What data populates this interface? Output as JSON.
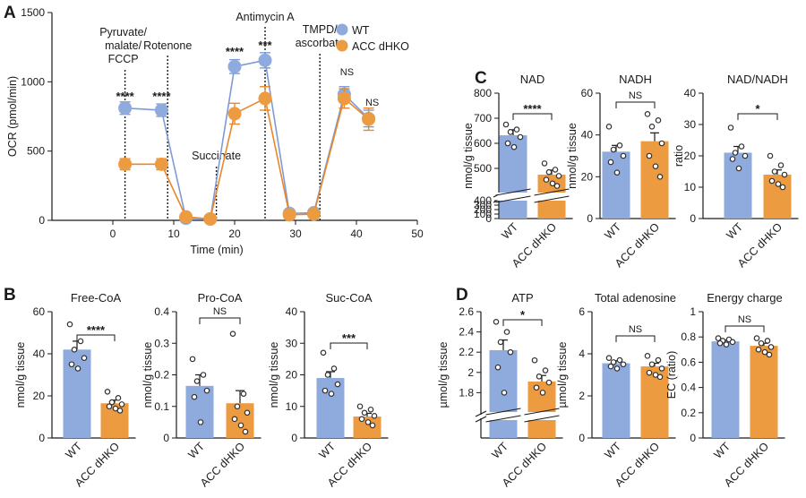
{
  "colors": {
    "wt": "#8FAADC",
    "acc": "#ED9B40",
    "wt_line": "#7E9BD6",
    "acc_line": "#E9872A",
    "ink": "#1a1a1a"
  },
  "groups": [
    "WT",
    "ACC dHKO"
  ],
  "panels": {
    "A": {
      "letter": "A",
      "legend": [
        "WT",
        "ACC dHKO"
      ],
      "annotations": [
        {
          "lines": [
            "Pyruvate/",
            "malate/",
            "FCCP"
          ],
          "x": 2
        },
        {
          "lines": [
            "Rotenone"
          ],
          "x": 9
        },
        {
          "lines": [
            "Succinate"
          ],
          "x": 17
        },
        {
          "lines": [
            "Antimycin A"
          ],
          "x": 25
        },
        {
          "lines": [
            "TMPD/",
            "ascorbate"
          ],
          "x": 34
        }
      ],
      "significance": [
        {
          "x": 2,
          "text": "****"
        },
        {
          "x": 8,
          "text": "****"
        },
        {
          "x": 20,
          "text": "****"
        },
        {
          "x": 25,
          "text": "***"
        },
        {
          "x": 38,
          "text": "NS"
        },
        {
          "x": 42,
          "text": "NS"
        }
      ]
    },
    "C": {
      "letter": "C"
    },
    "B": {
      "letter": "B"
    },
    "D": {
      "letter": "D"
    }
  },
  "chart_data": [
    {
      "id": "A",
      "type": "line",
      "xlabel": "Time (min)",
      "ylabel": "OCR (pmol/min)",
      "xlim": [
        -10,
        50
      ],
      "ylim": [
        0,
        1500
      ],
      "xticks": [
        0,
        10,
        20,
        30,
        40,
        50
      ],
      "yticks": [
        0,
        500,
        1000,
        1500
      ],
      "series": [
        {
          "name": "WT",
          "x": [
            2,
            8,
            12,
            16,
            20,
            25,
            29,
            33,
            38,
            42
          ],
          "y": [
            810,
            795,
            15,
            10,
            1110,
            1155,
            50,
            55,
            910,
            735
          ],
          "err": [
            45,
            45,
            10,
            10,
            50,
            55,
            15,
            15,
            55,
            60
          ]
        },
        {
          "name": "ACC dHKO",
          "x": [
            2,
            8,
            12,
            16,
            20,
            25,
            29,
            33,
            38,
            42
          ],
          "y": [
            405,
            405,
            25,
            10,
            770,
            880,
            40,
            45,
            880,
            730
          ],
          "err": [
            40,
            40,
            10,
            10,
            75,
            85,
            15,
            15,
            70,
            80
          ]
        }
      ]
    },
    {
      "id": "C1",
      "type": "bar",
      "title": "NAD",
      "ylabel": "nmol/g tissue",
      "broken": true,
      "lower": [
        0,
        400
      ],
      "upper": [
        400,
        800
      ],
      "yticks": [
        0,
        100,
        200,
        300,
        400,
        500,
        600,
        700,
        800
      ],
      "categories": [
        "WT",
        "ACC dHKO"
      ],
      "values": [
        632,
        475
      ],
      "sem": [
        22,
        18
      ],
      "points": [
        [
          675,
          655,
          645,
          625,
          600,
          585
        ],
        [
          520,
          495,
          485,
          470,
          455,
          440,
          430
        ]
      ],
      "sig": "****"
    },
    {
      "id": "C2",
      "type": "bar",
      "title": "NADH",
      "ylabel": "nmol/g tissue",
      "ylim": [
        0,
        60
      ],
      "yticks": [
        0,
        20,
        40,
        60
      ],
      "categories": [
        "WT",
        "ACC dHKO"
      ],
      "values": [
        32,
        37
      ],
      "sem": [
        3,
        4
      ],
      "points": [
        [
          44,
          35,
          33,
          30,
          27,
          22
        ],
        [
          50,
          47,
          44,
          36,
          30,
          25,
          20
        ]
      ],
      "sig": "NS"
    },
    {
      "id": "C3",
      "type": "bar",
      "title": "NAD/NADH",
      "ylabel": "ratio",
      "ylim": [
        0,
        40
      ],
      "yticks": [
        0,
        10,
        20,
        30,
        40
      ],
      "categories": [
        "WT",
        "ACC dHKO"
      ],
      "values": [
        21,
        14
      ],
      "sem": [
        2,
        1.5
      ],
      "points": [
        [
          29,
          23,
          21,
          20,
          19,
          16
        ],
        [
          20,
          17,
          15,
          14,
          12,
          11,
          10
        ]
      ],
      "sig": "*"
    },
    {
      "id": "B1",
      "type": "bar",
      "title": "Free-CoA",
      "ylabel": "nmol/g tissue",
      "ylim": [
        0,
        60
      ],
      "yticks": [
        0,
        20,
        40,
        60
      ],
      "categories": [
        "WT",
        "ACC dHKO"
      ],
      "values": [
        42,
        16.5
      ],
      "sem": [
        4,
        1.5
      ],
      "points": [
        [
          54,
          46,
          42,
          38,
          35,
          33
        ],
        [
          22,
          19,
          17,
          16,
          15,
          14,
          13
        ]
      ],
      "sig": "****"
    },
    {
      "id": "B2",
      "type": "bar",
      "title": "Pro-CoA",
      "ylabel": "nmol/g tissue",
      "ylim": [
        0,
        0.4
      ],
      "yticks": [
        0,
        0.1,
        0.2,
        0.3,
        0.4
      ],
      "categories": [
        "WT",
        "ACC dHKO"
      ],
      "values": [
        0.165,
        0.11
      ],
      "sem": [
        0.035,
        0.04
      ],
      "points": [
        [
          0.25,
          0.2,
          0.18,
          0.15,
          0.13,
          0.05
        ],
        [
          0.33,
          0.14,
          0.1,
          0.08,
          0.06,
          0.04,
          0.02
        ]
      ],
      "sig": "NS"
    },
    {
      "id": "B3",
      "type": "bar",
      "title": "Suc-CoA",
      "ylabel": "nmol/g tissue",
      "ylim": [
        0,
        40
      ],
      "yticks": [
        0,
        10,
        20,
        30,
        40
      ],
      "categories": [
        "WT",
        "ACC dHKO"
      ],
      "values": [
        19,
        6.8
      ],
      "sem": [
        2,
        1
      ],
      "points": [
        [
          27,
          22,
          20,
          17,
          15,
          14
        ],
        [
          10,
          9,
          8,
          7,
          6,
          5,
          4
        ]
      ],
      "sig": "***"
    },
    {
      "id": "D1",
      "type": "bar",
      "title": "ATP",
      "ylabel": "µmol/g tissue",
      "broken": true,
      "lower": [
        0,
        1.6
      ],
      "upper": [
        1.6,
        2.6
      ],
      "yticks": [
        1.8,
        2.0,
        2.2,
        2.4,
        2.6
      ],
      "categories": [
        "WT",
        "ACC dHKO"
      ],
      "values": [
        2.22,
        1.91
      ],
      "sem": [
        0.1,
        0.06
      ],
      "points": [
        [
          2.5,
          2.4,
          2.3,
          2.2,
          2.05,
          1.8
        ],
        [
          2.12,
          2.02,
          1.96,
          1.9,
          1.85,
          1.8
        ]
      ],
      "sig": "*"
    },
    {
      "id": "D2",
      "type": "bar",
      "title": "Total adenosine",
      "ylabel": "µmol/g tissue",
      "ylim": [
        0,
        6
      ],
      "yticks": [
        0,
        2,
        4,
        6
      ],
      "categories": [
        "WT",
        "ACC dHKO"
      ],
      "values": [
        3.55,
        3.4
      ],
      "sem": [
        0.12,
        0.15
      ],
      "points": [
        [
          3.8,
          3.7,
          3.6,
          3.5,
          3.4,
          3.3
        ],
        [
          3.9,
          3.7,
          3.5,
          3.3,
          3.1,
          3.0,
          2.9
        ]
      ],
      "sig": "NS"
    },
    {
      "id": "D3",
      "type": "bar",
      "title": "Energy charge",
      "ylabel": "EC (ratio)",
      "ylim": [
        0,
        1.0
      ],
      "yticks": [
        0,
        0.2,
        0.4,
        0.6,
        0.8,
        1.0
      ],
      "categories": [
        "WT",
        "ACC dHKO"
      ],
      "values": [
        0.765,
        0.73
      ],
      "sem": [
        0.01,
        0.02
      ],
      "points": [
        [
          0.79,
          0.78,
          0.77,
          0.76,
          0.75,
          0.74
        ],
        [
          0.79,
          0.77,
          0.75,
          0.72,
          0.7,
          0.68,
          0.66
        ]
      ],
      "sig": "NS"
    }
  ]
}
